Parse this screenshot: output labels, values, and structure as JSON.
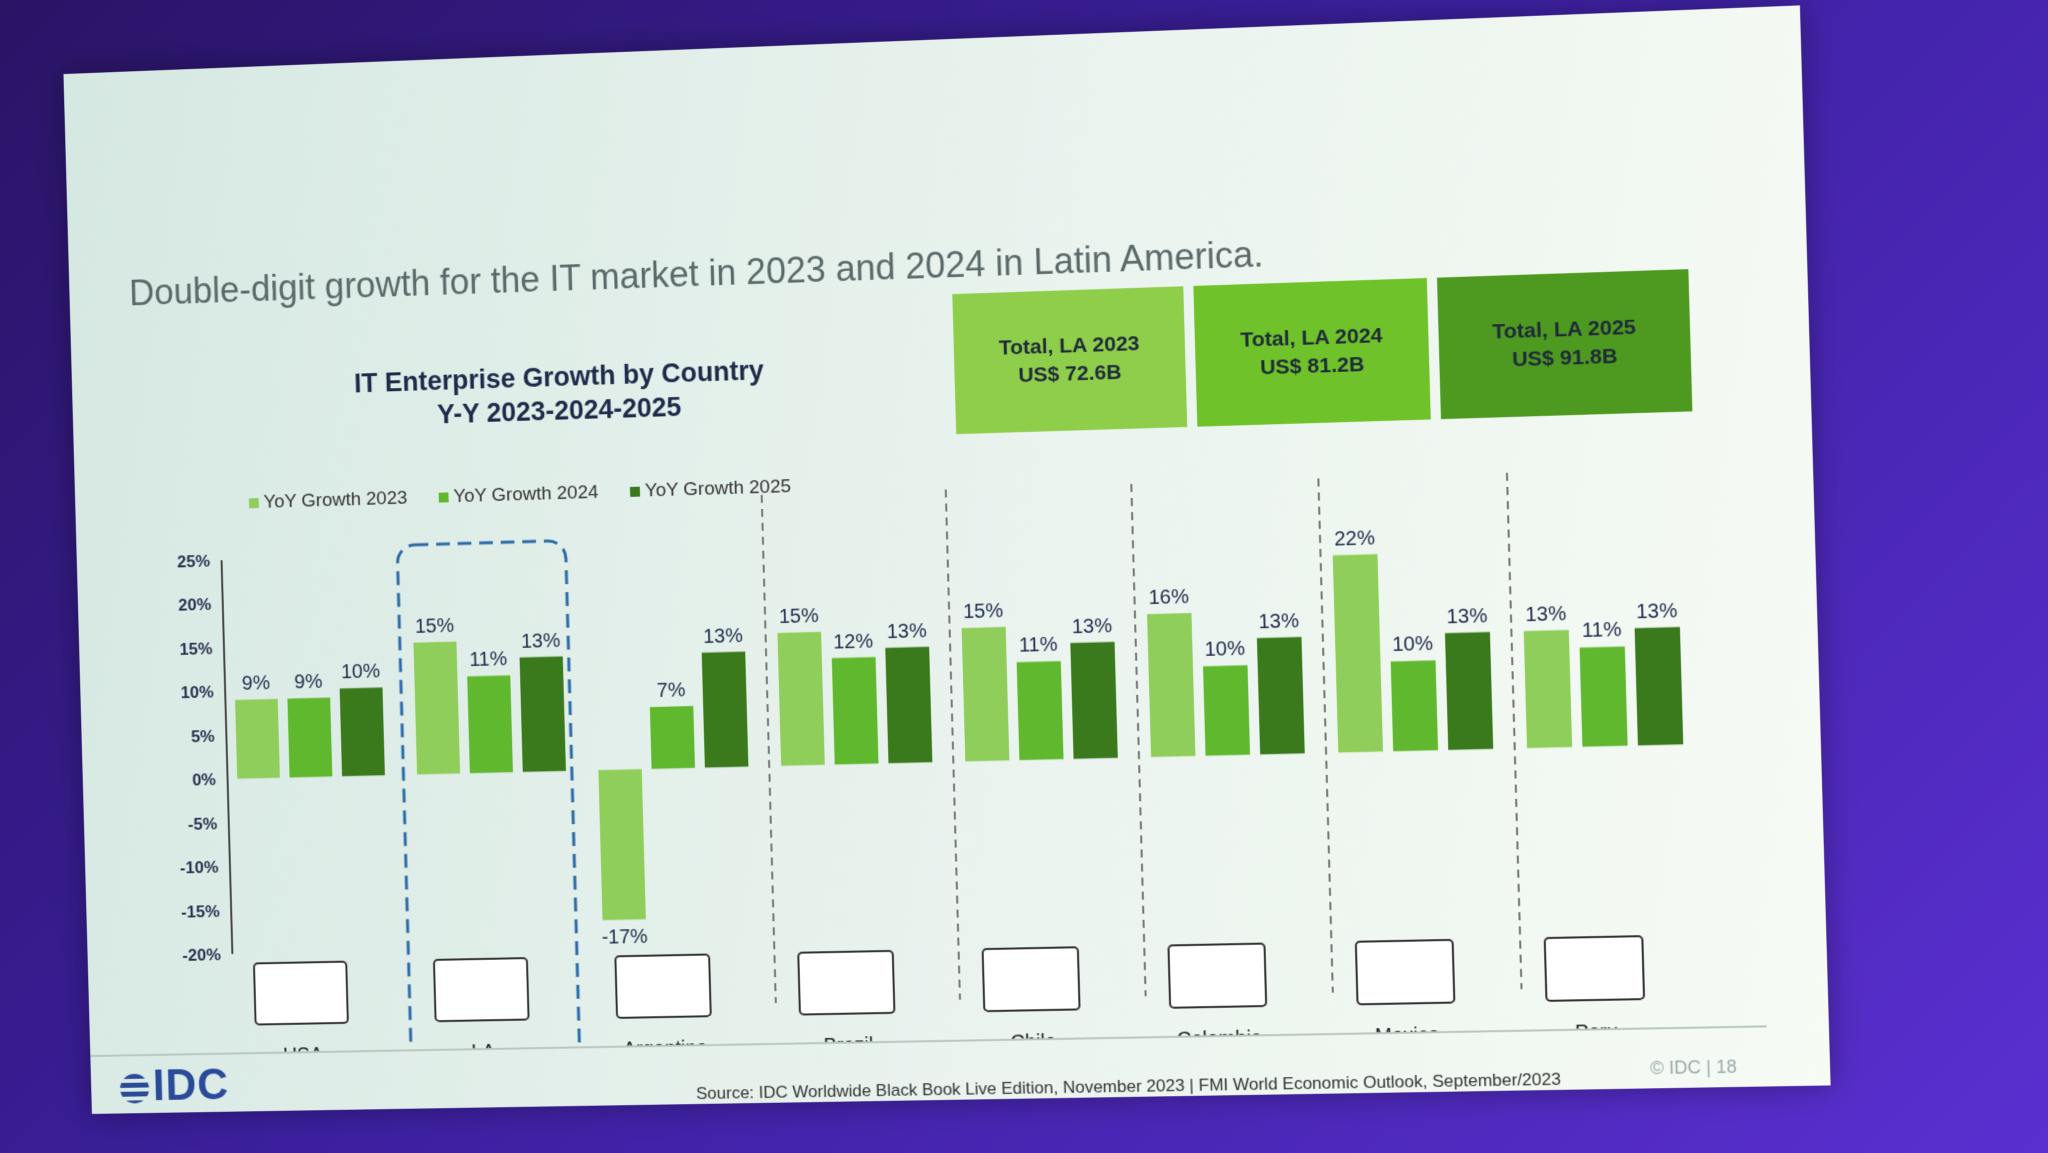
{
  "headline": "Double-digit growth for the IT market in 2023 and 2024 in Latin America.",
  "chart_title_line1": "IT Enterprise Growth by Country",
  "chart_title_line2": "Y-Y 2023-2024-2025",
  "totals": [
    {
      "label": "Total, LA 2023",
      "value": "US$ 72.6B"
    },
    {
      "label": "Total, LA 2024",
      "value": "US$ 81.2B"
    },
    {
      "label": "Total, LA 2025",
      "value": "US$ 91.8B"
    }
  ],
  "logo": "IDC",
  "source": "Source: IDC Worldwide Black Book Live Edition, November 2023 | FMI World Economic Outlook, September/2023",
  "page_number": "© IDC | 18",
  "colors": {
    "y2023": "#8fce5a",
    "y2024": "#5fb82e",
    "y2025": "#3a7a1c"
  },
  "chart_data": {
    "type": "bar",
    "title": "IT Enterprise Growth by Country",
    "subtitle": "Y-Y 2023-2024-2025",
    "categories": [
      "USA",
      "LA",
      "Argentina",
      "Brazil",
      "Chile",
      "Colombia",
      "Mexico",
      "Peru"
    ],
    "series": [
      {
        "name": "YoY Growth 2023",
        "values": [
          9,
          15,
          -17,
          15,
          15,
          16,
          22,
          13
        ],
        "labels": [
          "9%",
          "15%",
          "-17%",
          "15%",
          "15%",
          "16%",
          "22%",
          "13%"
        ]
      },
      {
        "name": "YoY Growth 2024",
        "values": [
          9,
          11,
          7,
          12,
          11,
          10,
          10,
          11
        ],
        "labels": [
          "9%",
          "11%",
          "7%",
          "12%",
          "11%",
          "10%",
          "10%",
          "11%"
        ]
      },
      {
        "name": "YoY Growth 2025",
        "values": [
          10,
          13,
          13,
          13,
          13,
          13,
          13,
          13
        ],
        "labels": [
          "10%",
          "13%",
          "13%",
          "13%",
          "13%",
          "13%",
          "13%",
          "13%"
        ]
      }
    ],
    "y_ticks": [
      "25%",
      "20%",
      "15%",
      "10%",
      "5%",
      "0%",
      "-5%",
      "-10%",
      "-15%",
      "-20%"
    ],
    "ylim": [
      -20,
      25
    ],
    "legend_position": "top-left",
    "highlighted_category": "LA"
  }
}
